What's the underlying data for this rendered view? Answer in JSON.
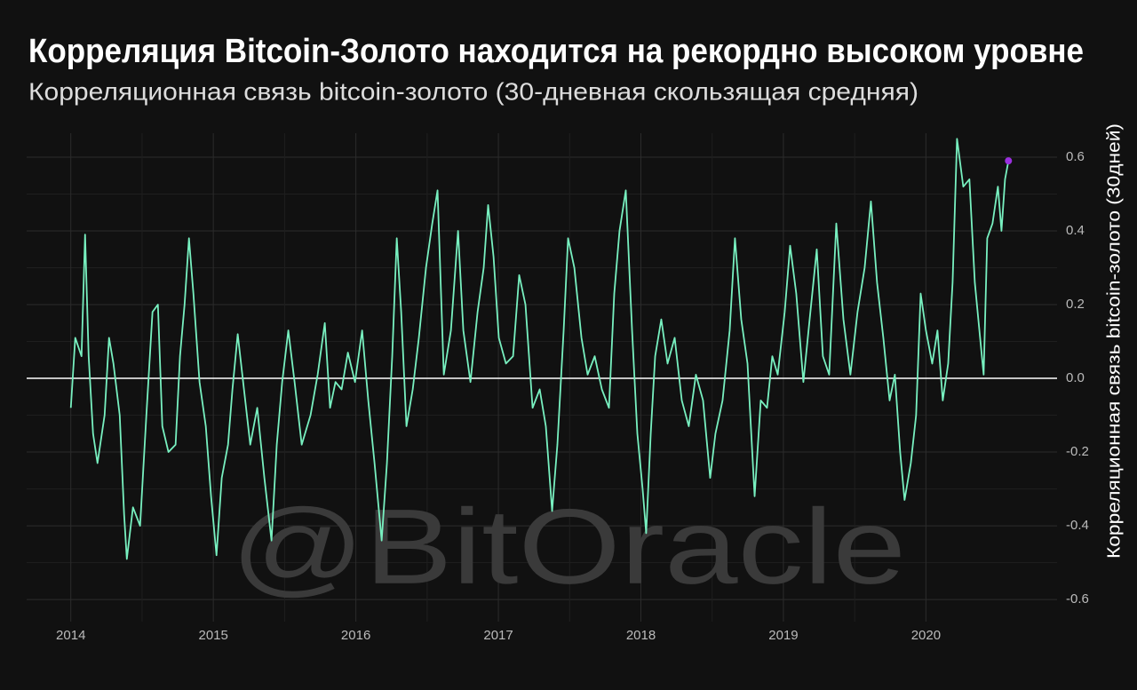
{
  "chart_data": {
    "type": "line",
    "title": "Корреляция Bitcoin-Золото находится на рекордно высоком уровне",
    "subtitle": "Корреляционная связь bitcoin-золото (30-дневная скользящая средняя)",
    "y_axis_label": "Корреляционная связь bitcoin-золото (30дней)",
    "watermark": "@BitOracle",
    "x": [
      2014.0,
      2014.031,
      2014.075,
      2014.1,
      2014.125,
      2014.156,
      2014.187,
      2014.237,
      2014.268,
      2014.299,
      2014.343,
      2014.374,
      2014.393,
      2014.436,
      2014.486,
      2014.53,
      2014.573,
      2014.611,
      2014.642,
      2014.685,
      2014.735,
      2014.766,
      2014.798,
      2014.829,
      2014.86,
      2014.903,
      2014.947,
      2014.984,
      2015.022,
      2015.059,
      2015.103,
      2015.134,
      2015.171,
      2015.215,
      2015.259,
      2015.308,
      2015.358,
      2015.408,
      2015.445,
      2015.483,
      2015.526,
      2015.57,
      2015.62,
      2015.682,
      2015.732,
      2015.782,
      2015.819,
      2015.857,
      2015.9,
      2015.944,
      2015.994,
      2016.044,
      2016.087,
      2016.131,
      2016.181,
      2016.218,
      2016.255,
      2016.287,
      2016.318,
      2016.355,
      2016.399,
      2016.442,
      2016.492,
      2016.536,
      2016.573,
      2016.617,
      2016.667,
      2016.717,
      2016.754,
      2016.804,
      2016.854,
      2016.897,
      2016.928,
      2016.966,
      2017.003,
      2017.053,
      2017.103,
      2017.146,
      2017.19,
      2017.24,
      2017.29,
      2017.333,
      2017.377,
      2017.414,
      2017.458,
      2017.489,
      2017.533,
      2017.583,
      2017.626,
      2017.676,
      2017.726,
      2017.776,
      2017.813,
      2017.85,
      2017.894,
      2017.938,
      2017.975,
      2018.012,
      2018.037,
      2018.069,
      2018.1,
      2018.143,
      2018.187,
      2018.237,
      2018.287,
      2018.336,
      2018.386,
      2018.436,
      2018.486,
      2018.523,
      2018.573,
      2018.623,
      2018.66,
      2018.704,
      2018.748,
      2018.798,
      2018.841,
      2018.885,
      2018.922,
      2018.96,
      2019.009,
      2019.047,
      2019.09,
      2019.14,
      2019.184,
      2019.234,
      2019.277,
      2019.321,
      2019.371,
      2019.421,
      2019.47,
      2019.52,
      2019.57,
      2019.614,
      2019.657,
      2019.701,
      2019.745,
      2019.782,
      2019.819,
      2019.85,
      2019.894,
      2019.931,
      2019.963,
      2020.0,
      2020.044,
      2020.081,
      2020.118,
      2020.156,
      2020.187,
      2020.218,
      2020.262,
      2020.305,
      2020.343,
      2020.38,
      2020.405,
      2020.43,
      2020.467,
      2020.505,
      2020.53,
      2020.555,
      2020.579
    ],
    "series": [
      {
        "name": "bitcoin-gold",
        "color": "#78f0c0",
        "values": [
          -0.08,
          0.11,
          0.06,
          0.39,
          0.06,
          -0.15,
          -0.23,
          -0.1,
          0.11,
          0.04,
          -0.1,
          -0.37,
          -0.49,
          -0.35,
          -0.4,
          -0.1,
          0.18,
          0.2,
          -0.13,
          -0.2,
          -0.18,
          0.06,
          0.2,
          0.38,
          0.23,
          -0.01,
          -0.13,
          -0.32,
          -0.48,
          -0.27,
          -0.18,
          -0.03,
          0.12,
          -0.03,
          -0.18,
          -0.08,
          -0.27,
          -0.44,
          -0.18,
          -0.01,
          0.13,
          -0.01,
          -0.18,
          -0.1,
          0.01,
          0.15,
          -0.08,
          -0.01,
          -0.03,
          0.07,
          -0.01,
          0.13,
          -0.06,
          -0.23,
          -0.44,
          -0.23,
          0.06,
          0.38,
          0.18,
          -0.13,
          -0.03,
          0.11,
          0.3,
          0.42,
          0.51,
          0.01,
          0.13,
          0.4,
          0.13,
          -0.01,
          0.18,
          0.3,
          0.47,
          0.33,
          0.11,
          0.04,
          0.06,
          0.28,
          0.2,
          -0.08,
          -0.03,
          -0.13,
          -0.36,
          -0.18,
          0.13,
          0.38,
          0.3,
          0.11,
          0.01,
          0.06,
          -0.03,
          -0.08,
          0.23,
          0.4,
          0.51,
          0.13,
          -0.15,
          -0.3,
          -0.42,
          -0.15,
          0.06,
          0.16,
          0.04,
          0.11,
          -0.06,
          -0.13,
          0.01,
          -0.06,
          -0.27,
          -0.15,
          -0.06,
          0.13,
          0.38,
          0.16,
          0.04,
          -0.32,
          -0.06,
          -0.08,
          0.06,
          0.01,
          0.18,
          0.36,
          0.23,
          -0.01,
          0.16,
          0.35,
          0.06,
          0.01,
          0.42,
          0.16,
          0.01,
          0.18,
          0.3,
          0.48,
          0.26,
          0.11,
          -0.06,
          0.01,
          -0.2,
          -0.33,
          -0.23,
          -0.1,
          0.23,
          0.13,
          0.04,
          0.13,
          -0.06,
          0.04,
          0.26,
          0.65,
          0.52,
          0.54,
          0.26,
          0.11,
          0.01,
          0.38,
          0.42,
          0.52,
          0.4,
          0.54,
          0.59
        ]
      }
    ],
    "last_point_color": "#9b30e0",
    "zero_line_color": "#ffffff",
    "xlim": [
      2013.69,
      2020.92
    ],
    "xticks": [
      2014,
      2015,
      2016,
      2017,
      2018,
      2019,
      2020
    ],
    "ylim": [
      -0.66,
      0.665
    ],
    "yticks": [
      {
        "value": -0.6,
        "label": "-0.6"
      },
      {
        "value": -0.4,
        "label": "-0.4"
      },
      {
        "value": -0.2,
        "label": "-0.2"
      },
      {
        "value": 0,
        "label": "0.0"
      },
      {
        "value": 0.2,
        "label": "0.2"
      },
      {
        "value": 0.4,
        "label": "0.4"
      },
      {
        "value": 0.6,
        "label": "0.6"
      }
    ],
    "grid": true
  }
}
